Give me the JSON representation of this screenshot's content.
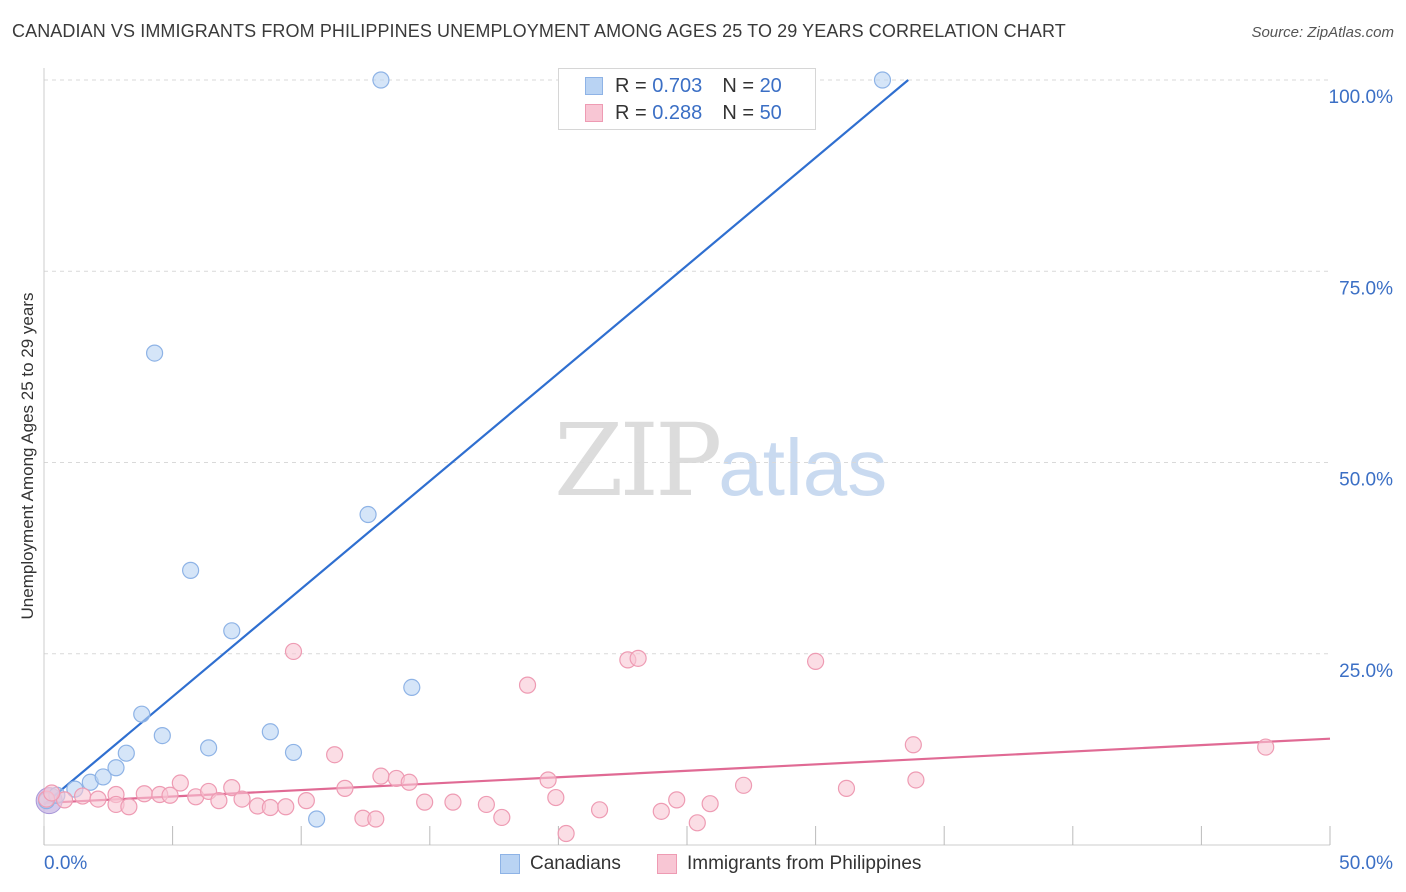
{
  "header": {
    "title": "CANADIAN VS IMMIGRANTS FROM PHILIPPINES UNEMPLOYMENT AMONG AGES 25 TO 29 YEARS CORRELATION CHART",
    "source": "Source: ZipAtlas.com"
  },
  "watermark": {
    "zip": "ZIP",
    "atlas": "atlas"
  },
  "legend": {
    "r_label": "R =",
    "n_label": "N =",
    "series": [
      {
        "name": "Canadians",
        "r": "0.703",
        "n": "20"
      },
      {
        "name": "Immigrants from Philippines",
        "r": "0.288",
        "n": "50"
      }
    ]
  },
  "colors": {
    "canadians_fill": "#b9d3f3",
    "canadians_stroke": "#8eb3e6",
    "canadians_line": "#2f6fd0",
    "philippines_fill": "#f8c6d4",
    "philippines_stroke": "#ee9bb3",
    "philippines_line": "#e06a94",
    "tick_label": "#3b6fc5",
    "grid": "#d9d9d9"
  },
  "chart_data": {
    "type": "scatter",
    "title": "CANADIAN VS IMMIGRANTS FROM PHILIPPINES UNEMPLOYMENT AMONG AGES 25 TO 29 YEARS CORRELATION CHART",
    "xlabel": "",
    "ylabel": "Unemployment Among Ages 25 to 29 years",
    "xlim": [
      0,
      50
    ],
    "ylim": [
      0,
      100
    ],
    "x_ticks": [
      0,
      5,
      10,
      15,
      20,
      25,
      30,
      35,
      40,
      45,
      50
    ],
    "x_tick_labels": [
      "0.0%",
      "50.0%"
    ],
    "y_ticks": [
      25,
      50,
      75,
      100
    ],
    "y_tick_labels": [
      "25.0%",
      "50.0%",
      "75.0%",
      "100.0%"
    ],
    "grid": true,
    "legend_position": "top-center",
    "series": [
      {
        "name": "Canadians",
        "points": [
          {
            "x": 0.1,
            "y": 5.8
          },
          {
            "x": 0.5,
            "y": 6.5
          },
          {
            "x": 1.2,
            "y": 7.3
          },
          {
            "x": 1.8,
            "y": 8.2
          },
          {
            "x": 2.3,
            "y": 8.9
          },
          {
            "x": 2.8,
            "y": 10.1
          },
          {
            "x": 3.2,
            "y": 12.0
          },
          {
            "x": 3.8,
            "y": 17.1
          },
          {
            "x": 4.6,
            "y": 14.3
          },
          {
            "x": 4.3,
            "y": 64.3
          },
          {
            "x": 5.7,
            "y": 35.9
          },
          {
            "x": 6.4,
            "y": 12.7
          },
          {
            "x": 7.3,
            "y": 28.0
          },
          {
            "x": 8.8,
            "y": 14.8
          },
          {
            "x": 9.7,
            "y": 12.1
          },
          {
            "x": 10.6,
            "y": 3.4
          },
          {
            "x": 12.6,
            "y": 43.2
          },
          {
            "x": 14.3,
            "y": 20.6
          },
          {
            "x": 13.1,
            "y": 100.0
          },
          {
            "x": 32.6,
            "y": 100.0
          }
        ],
        "trend": {
          "x": [
            0,
            33.6
          ],
          "y": [
            5.3,
            100.0
          ]
        }
      },
      {
        "name": "Immigrants from Philippines",
        "points": [
          {
            "x": 0.1,
            "y": 6.0
          },
          {
            "x": 0.8,
            "y": 5.9
          },
          {
            "x": 1.5,
            "y": 6.4
          },
          {
            "x": 2.1,
            "y": 6.0
          },
          {
            "x": 2.8,
            "y": 6.6
          },
          {
            "x": 2.8,
            "y": 5.3
          },
          {
            "x": 3.3,
            "y": 5.0
          },
          {
            "x": 3.9,
            "y": 6.7
          },
          {
            "x": 4.5,
            "y": 6.6
          },
          {
            "x": 4.9,
            "y": 6.5
          },
          {
            "x": 5.3,
            "y": 8.1
          },
          {
            "x": 5.9,
            "y": 6.3
          },
          {
            "x": 6.4,
            "y": 7.0
          },
          {
            "x": 6.8,
            "y": 5.8
          },
          {
            "x": 7.3,
            "y": 7.5
          },
          {
            "x": 7.7,
            "y": 6.0
          },
          {
            "x": 8.3,
            "y": 5.1
          },
          {
            "x": 8.8,
            "y": 4.9
          },
          {
            "x": 9.4,
            "y": 5.0
          },
          {
            "x": 9.7,
            "y": 25.3
          },
          {
            "x": 10.2,
            "y": 5.8
          },
          {
            "x": 11.3,
            "y": 11.8
          },
          {
            "x": 11.7,
            "y": 7.4
          },
          {
            "x": 12.4,
            "y": 3.5
          },
          {
            "x": 12.9,
            "y": 3.4
          },
          {
            "x": 13.1,
            "y": 9.0
          },
          {
            "x": 13.7,
            "y": 8.7
          },
          {
            "x": 14.2,
            "y": 8.2
          },
          {
            "x": 14.8,
            "y": 5.6
          },
          {
            "x": 15.9,
            "y": 5.6
          },
          {
            "x": 17.2,
            "y": 5.3
          },
          {
            "x": 17.8,
            "y": 3.6
          },
          {
            "x": 18.8,
            "y": 20.9
          },
          {
            "x": 19.6,
            "y": 8.5
          },
          {
            "x": 19.9,
            "y": 6.2
          },
          {
            "x": 20.3,
            "y": 1.5
          },
          {
            "x": 21.6,
            "y": 4.6
          },
          {
            "x": 22.7,
            "y": 24.2
          },
          {
            "x": 23.1,
            "y": 24.4
          },
          {
            "x": 24.0,
            "y": 4.4
          },
          {
            "x": 24.6,
            "y": 5.9
          },
          {
            "x": 25.4,
            "y": 2.9
          },
          {
            "x": 25.9,
            "y": 5.4
          },
          {
            "x": 27.2,
            "y": 7.8
          },
          {
            "x": 30.0,
            "y": 24.0
          },
          {
            "x": 31.2,
            "y": 7.4
          },
          {
            "x": 33.8,
            "y": 13.1
          },
          {
            "x": 33.9,
            "y": 8.5
          },
          {
            "x": 47.5,
            "y": 12.8
          },
          {
            "x": 0.3,
            "y": 6.8
          }
        ],
        "trend": {
          "x": [
            0,
            50
          ],
          "y": [
            5.5,
            13.9
          ]
        }
      }
    ]
  }
}
